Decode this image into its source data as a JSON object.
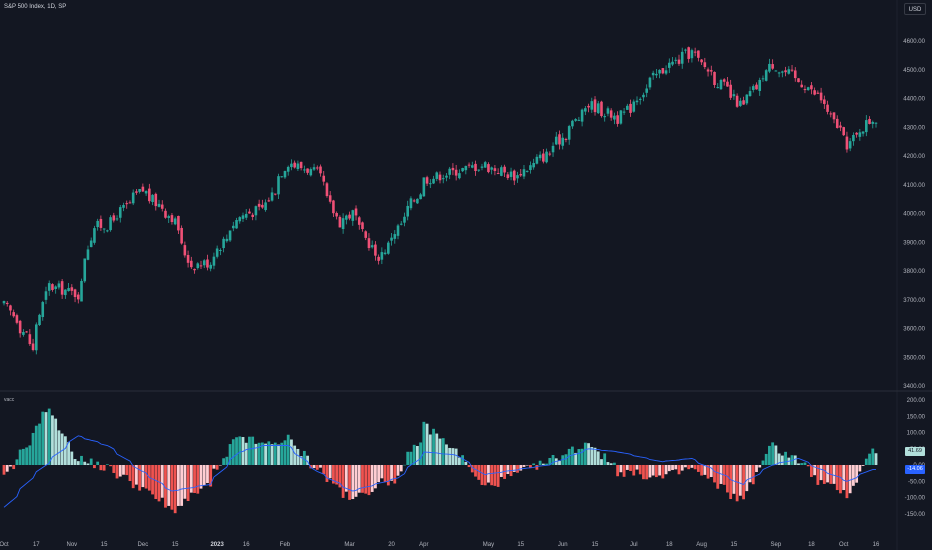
{
  "title": "S&P 500 Index, 1D, SP",
  "currency_button": "USD",
  "indicator_name": "vacc",
  "colors": {
    "background": "#131722",
    "up_candle": "#26a69a",
    "down_candle": "#ef5076",
    "hist_up_strong": "#26a69a",
    "hist_up_weak": "#b2dfdb",
    "hist_down_strong": "#ef5350",
    "hist_down_weak": "#ffcdd2",
    "signal_line": "#2962ff",
    "axis_text": "#b2b5be"
  },
  "badges": {
    "histogram_last": "41.69",
    "signal_last": "-14.06"
  },
  "x_axis_labels": [
    "Oct",
    "17",
    "Nov",
    "15",
    "Dec",
    "15",
    "2023",
    "16",
    "Feb",
    "Mar",
    "20",
    "Apr",
    "May",
    "15",
    "Jun",
    "15",
    "Jul",
    "18",
    "Aug",
    "15",
    "Sep",
    "18",
    "Oct",
    "16"
  ],
  "price_axis_labels": [
    "4600.00",
    "4500.00",
    "4400.00",
    "4300.00",
    "4200.00",
    "4100.00",
    "4000.00",
    "3900.00",
    "3800.00",
    "3700.00",
    "3600.00",
    "3500.00",
    "3400.00"
  ],
  "osc_axis_labels": [
    "200.00",
    "150.00",
    "100.00",
    "50.00",
    "0.00",
    "-50.00",
    "-100.00",
    "-150.00"
  ],
  "chart_data": [
    {
      "type": "candlestick",
      "series_name": "S&P 500 Index",
      "y_range": [
        3400,
        4650
      ],
      "x_range": [
        "2022-10-03",
        "2023-10-16"
      ],
      "anchors": [
        {
          "date": "2022-10-03",
          "close": 3680
        },
        {
          "date": "2022-10-12",
          "close": 3580
        },
        {
          "date": "2022-10-14",
          "close": 3520
        },
        {
          "date": "2022-10-21",
          "close": 3750
        },
        {
          "date": "2022-11-03",
          "close": 3720
        },
        {
          "date": "2022-11-10",
          "close": 3955
        },
        {
          "date": "2022-11-16",
          "close": 3960
        },
        {
          "date": "2022-12-01",
          "close": 4080
        },
        {
          "date": "2022-12-14",
          "close": 3990
        },
        {
          "date": "2022-12-22",
          "close": 3820
        },
        {
          "date": "2022-12-30",
          "close": 3830
        },
        {
          "date": "2023-01-12",
          "close": 3990
        },
        {
          "date": "2023-01-23",
          "close": 4020
        },
        {
          "date": "2023-02-02",
          "close": 4180
        },
        {
          "date": "2023-02-15",
          "close": 4140
        },
        {
          "date": "2023-02-24",
          "close": 3970
        },
        {
          "date": "2023-03-02",
          "close": 4000
        },
        {
          "date": "2023-03-13",
          "close": 3840
        },
        {
          "date": "2023-03-22",
          "close": 3950
        },
        {
          "date": "2023-04-03",
          "close": 4120
        },
        {
          "date": "2023-04-17",
          "close": 4150
        },
        {
          "date": "2023-04-28",
          "close": 4170
        },
        {
          "date": "2023-05-12",
          "close": 4130
        },
        {
          "date": "2023-05-26",
          "close": 4210
        },
        {
          "date": "2023-06-13",
          "close": 4380
        },
        {
          "date": "2023-06-26",
          "close": 4330
        },
        {
          "date": "2023-07-14",
          "close": 4500
        },
        {
          "date": "2023-07-27",
          "close": 4560
        },
        {
          "date": "2023-08-02",
          "close": 4510
        },
        {
          "date": "2023-08-18",
          "close": 4370
        },
        {
          "date": "2023-08-31",
          "close": 4520
        },
        {
          "date": "2023-09-12",
          "close": 4460
        },
        {
          "date": "2023-09-20",
          "close": 4410
        },
        {
          "date": "2023-10-03",
          "close": 4240
        },
        {
          "date": "2023-10-13",
          "close": 4330
        }
      ]
    },
    {
      "type": "histogram",
      "series_name": "vacc",
      "y_range": [
        -160,
        220
      ],
      "anchors": [
        {
          "date": "2022-10-03",
          "value": -40
        },
        {
          "date": "2022-10-12",
          "value": 60
        },
        {
          "date": "2022-10-21",
          "value": 180
        },
        {
          "date": "2022-11-03",
          "value": 20
        },
        {
          "date": "2022-11-16",
          "value": -10
        },
        {
          "date": "2022-12-01",
          "value": -70
        },
        {
          "date": "2022-12-14",
          "value": -140
        },
        {
          "date": "2022-12-30",
          "value": -60
        },
        {
          "date": "2023-01-12",
          "value": 90
        },
        {
          "date": "2023-01-23",
          "value": 60
        },
        {
          "date": "2023-02-02",
          "value": 80
        },
        {
          "date": "2023-02-15",
          "value": -10
        },
        {
          "date": "2023-03-02",
          "value": -110
        },
        {
          "date": "2023-03-13",
          "value": -60
        },
        {
          "date": "2023-03-22",
          "value": -40
        },
        {
          "date": "2023-04-03",
          "value": 120
        },
        {
          "date": "2023-04-17",
          "value": 40
        },
        {
          "date": "2023-04-28",
          "value": -70
        },
        {
          "date": "2023-05-12",
          "value": -30
        },
        {
          "date": "2023-05-26",
          "value": 10
        },
        {
          "date": "2023-06-13",
          "value": 70
        },
        {
          "date": "2023-06-26",
          "value": -20
        },
        {
          "date": "2023-07-14",
          "value": -40
        },
        {
          "date": "2023-07-27",
          "value": -10
        },
        {
          "date": "2023-08-18",
          "value": -110
        },
        {
          "date": "2023-08-31",
          "value": 60
        },
        {
          "date": "2023-09-12",
          "value": 15
        },
        {
          "date": "2023-09-20",
          "value": -50
        },
        {
          "date": "2023-10-03",
          "value": -90
        },
        {
          "date": "2023-10-13",
          "value": 42
        }
      ],
      "signal_line": [
        {
          "date": "2022-10-03",
          "value": -130
        },
        {
          "date": "2022-10-14",
          "value": -40
        },
        {
          "date": "2022-11-03",
          "value": 90
        },
        {
          "date": "2022-11-16",
          "value": 60
        },
        {
          "date": "2022-12-01",
          "value": -20
        },
        {
          "date": "2022-12-14",
          "value": -80
        },
        {
          "date": "2022-12-30",
          "value": -60
        },
        {
          "date": "2023-01-12",
          "value": 40
        },
        {
          "date": "2023-01-23",
          "value": 60
        },
        {
          "date": "2023-02-02",
          "value": 60
        },
        {
          "date": "2023-02-15",
          "value": -20
        },
        {
          "date": "2023-03-02",
          "value": -80
        },
        {
          "date": "2023-03-22",
          "value": -40
        },
        {
          "date": "2023-04-03",
          "value": 40
        },
        {
          "date": "2023-04-17",
          "value": 30
        },
        {
          "date": "2023-04-28",
          "value": -30
        },
        {
          "date": "2023-05-26",
          "value": 0
        },
        {
          "date": "2023-06-13",
          "value": 50
        },
        {
          "date": "2023-06-26",
          "value": 40
        },
        {
          "date": "2023-07-14",
          "value": 10
        },
        {
          "date": "2023-07-27",
          "value": 20
        },
        {
          "date": "2023-08-18",
          "value": -60
        },
        {
          "date": "2023-08-31",
          "value": 0
        },
        {
          "date": "2023-09-12",
          "value": 20
        },
        {
          "date": "2023-09-20",
          "value": -10
        },
        {
          "date": "2023-10-03",
          "value": -50
        },
        {
          "date": "2023-10-13",
          "value": -14
        }
      ]
    }
  ]
}
